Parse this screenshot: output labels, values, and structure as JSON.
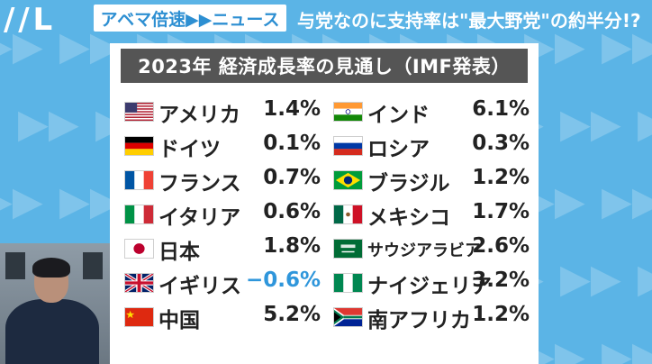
{
  "header": {
    "program": "アベマ倍速▶▶ニュース",
    "headline": "与党なのに支持率は\"最大野党\"の約半分!?"
  },
  "table": {
    "title": "2023年 経済成長率の見通し（IMF発表）",
    "left": [
      {
        "country": "アメリカ",
        "value": "1.4%",
        "flag": "us-flag"
      },
      {
        "country": "ドイツ",
        "value": "0.1%",
        "flag": "germany-flag"
      },
      {
        "country": "フランス",
        "value": "0.7%",
        "flag": "france-flag"
      },
      {
        "country": "イタリア",
        "value": "0.6%",
        "flag": "italy-flag"
      },
      {
        "country": "日本",
        "value": "1.8%",
        "flag": "japan-flag"
      },
      {
        "country": "イギリス",
        "value": "−0.6%",
        "flag": "uk-flag"
      },
      {
        "country": "中国",
        "value": "5.2%",
        "flag": "china-flag"
      }
    ],
    "right": [
      {
        "country": "インド",
        "value": "6.1%",
        "flag": "india-flag"
      },
      {
        "country": "ロシア",
        "value": "0.3%",
        "flag": "russia-flag"
      },
      {
        "country": "ブラジル",
        "value": "1.2%",
        "flag": "brazil-flag"
      },
      {
        "country": "メキシコ",
        "value": "1.7%",
        "flag": "mexico-flag"
      },
      {
        "country": "サウジアラビア",
        "value": "2.6%",
        "flag": "saudi-flag"
      },
      {
        "country": "ナイジェリア",
        "value": "3.2%",
        "flag": "nigeria-flag"
      },
      {
        "country": "南アフリカ",
        "value": "1.2%",
        "flag": "south-africa-flag"
      }
    ]
  },
  "colors": {
    "background": "#5bb4e6",
    "accent": "#2d8fd2",
    "negative": "#2f96db",
    "title_bar": "#555555"
  }
}
